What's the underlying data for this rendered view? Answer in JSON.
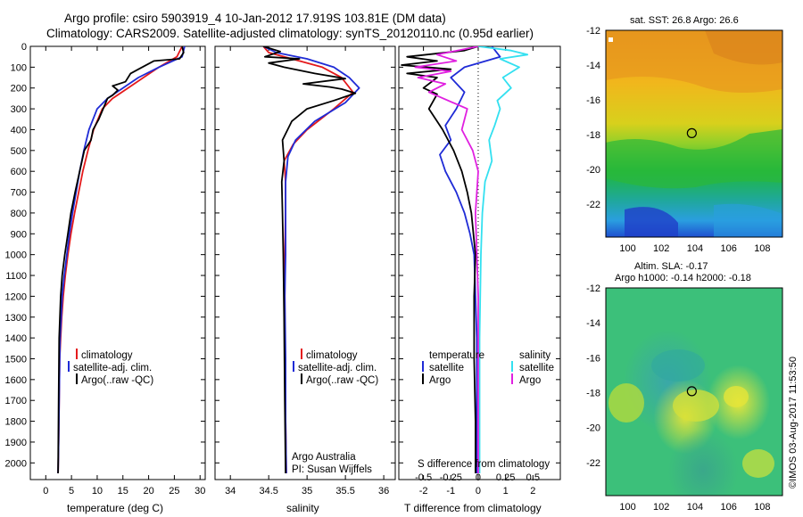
{
  "title": {
    "line1": "Argo profile: csiro 5903919_4 10-Jan-2012 17.919S 103.81E (DM data)",
    "line2": "Climatology: CARS2009. Satellite-adjusted climatology: synTS_20120110.nc (0.95d earlier)"
  },
  "colors": {
    "climatology": "#e41a1c",
    "satellite": "#1f2bd6",
    "argo": "#000000",
    "sal_satellite": "#33e0f0",
    "sal_argo": "#e020e0"
  },
  "chart_data": [
    {
      "type": "line",
      "xlabel": "temperature (deg C)",
      "ylabel": "",
      "xlim": [
        -3,
        31
      ],
      "ylim": [
        2080,
        0
      ],
      "xticks": [
        0,
        5,
        10,
        15,
        20,
        25,
        30
      ],
      "yticks": [
        0,
        100,
        200,
        300,
        400,
        500,
        600,
        700,
        800,
        900,
        1000,
        1100,
        1200,
        1300,
        1400,
        1500,
        1600,
        1700,
        1800,
        1900,
        2000
      ],
      "legend": [
        "climatology",
        "satellite-adj. clim.",
        "Argo(..raw -QC)"
      ],
      "series": [
        {
          "name": "climatology",
          "color_key": "climatology",
          "x": [
            26.5,
            25.5,
            22,
            19,
            16,
            13,
            11,
            9.3,
            8.2,
            7.2,
            6.4,
            5.6,
            4.9,
            4.3,
            3.8,
            3.4,
            3.1,
            2.9,
            2.7,
            2.6,
            2.5,
            2.4
          ],
          "y": [
            0,
            50,
            100,
            150,
            200,
            250,
            300,
            400,
            500,
            600,
            700,
            800,
            900,
            1000,
            1100,
            1200,
            1300,
            1400,
            1500,
            1700,
            1900,
            2050
          ]
        },
        {
          "name": "satellite-adj. clim.",
          "color_key": "satellite",
          "x": [
            27,
            26.5,
            22,
            18,
            15,
            12,
            10,
            8.4,
            7.4,
            6.6,
            5.9,
            5.2,
            4.6,
            4.1,
            3.6,
            3.2,
            3.0,
            2.8,
            2.7,
            2.6,
            2.5,
            2.4
          ],
          "y": [
            0,
            50,
            100,
            150,
            200,
            250,
            300,
            400,
            500,
            600,
            700,
            800,
            900,
            1000,
            1100,
            1200,
            1300,
            1400,
            1500,
            1700,
            1900,
            2050
          ]
        },
        {
          "name": "Argo(..raw -QC)",
          "color_key": "argo",
          "x": [
            26.5,
            26.8,
            26,
            21,
            18,
            16.5,
            15.5,
            13,
            14,
            13,
            12,
            10.3,
            9.2,
            8.8,
            7.5,
            6.6,
            5.7,
            4.9,
            4.3,
            3.7,
            3.2,
            2.9,
            2.6,
            2.5,
            2.4
          ],
          "y": [
            0,
            30,
            60,
            70,
            110,
            130,
            170,
            190,
            210,
            235,
            250,
            350,
            400,
            450,
            500,
            600,
            700,
            800,
            900,
            1000,
            1100,
            1200,
            1400,
            1700,
            2050
          ]
        }
      ],
      "annotations": []
    },
    {
      "type": "line",
      "xlabel": "salinity",
      "ylabel": "",
      "xlim": [
        33.8,
        36.15
      ],
      "ylim": [
        2080,
        0
      ],
      "xticks": [
        34,
        34.5,
        35,
        35.5,
        36
      ],
      "legend": [
        "climatology",
        "satellite-adj. clim.",
        "Argo(..raw -QC)"
      ],
      "series": [
        {
          "name": "climatology",
          "color_key": "climatology",
          "x": [
            34.43,
            34.5,
            34.8,
            35.2,
            35.45,
            35.6,
            35.35,
            35.0,
            34.82,
            34.7,
            34.72,
            34.72,
            34.71,
            34.71,
            34.71,
            34.72,
            34.72,
            34.73
          ],
          "y": [
            0,
            30,
            60,
            100,
            150,
            220,
            300,
            400,
            470,
            550,
            650,
            800,
            1000,
            1200,
            1400,
            1600,
            1800,
            2050
          ]
        },
        {
          "name": "satellite-adj. clim.",
          "color_key": "satellite",
          "x": [
            34.43,
            34.6,
            35.0,
            35.35,
            35.55,
            35.68,
            35.5,
            35.1,
            34.85,
            34.75,
            34.72,
            34.72,
            34.72,
            34.71,
            34.72,
            34.72,
            34.73
          ],
          "y": [
            0,
            30,
            60,
            100,
            150,
            200,
            270,
            360,
            450,
            530,
            650,
            800,
            1000,
            1200,
            1500,
            1800,
            2050
          ]
        },
        {
          "name": "Argo(..raw -QC)",
          "color_key": "argo",
          "x": [
            34.43,
            34.65,
            34.45,
            34.9,
            34.5,
            34.7,
            35.1,
            35.5,
            34.95,
            35.3,
            35.45,
            35.63,
            35.35,
            35.0,
            34.8,
            34.68,
            34.7,
            34.67,
            34.68,
            34.69,
            34.7,
            34.71,
            34.72
          ],
          "y": [
            0,
            25,
            50,
            60,
            80,
            100,
            130,
            155,
            180,
            195,
            205,
            225,
            260,
            300,
            360,
            450,
            550,
            650,
            800,
            1000,
            1300,
            1700,
            2050
          ]
        }
      ],
      "annotations": [
        "Argo Australia",
        "PI: Susan Wijffels"
      ]
    },
    {
      "type": "line",
      "xlabel": "T difference from climatology",
      "top_label": "S difference from climatology",
      "xlim": [
        -2.9,
        3.0
      ],
      "ylim": [
        2080,
        0
      ],
      "xticks": [
        -2,
        -1,
        0,
        1,
        2
      ],
      "top_ticks": [
        "-0.5",
        "-0.25",
        "0",
        "0.25",
        "0.5"
      ],
      "top_tick_positions": [
        -2,
        -1,
        0,
        1,
        2
      ],
      "legend_groups": [
        {
          "heading": "temperature",
          "items": [
            "satellite",
            "Argo"
          ]
        },
        {
          "heading": "salinity",
          "items": [
            "satellite",
            "Argo"
          ]
        }
      ],
      "series": [
        {
          "name": "temperature satellite",
          "color_key": "satellite",
          "x": [
            0.5,
            0.8,
            -0.5,
            -1.0,
            -0.5,
            -0.8,
            -1.2,
            -1.0,
            -1.4,
            -1.2,
            -0.8,
            -0.5,
            -0.3,
            -0.15,
            -0.1,
            -0.05,
            -0.05,
            -0.05,
            -0.05
          ],
          "y": [
            0,
            50,
            100,
            150,
            220,
            300,
            380,
            450,
            520,
            600,
            700,
            800,
            900,
            1000,
            1200,
            1400,
            1600,
            1800,
            2050
          ]
        },
        {
          "name": "temperature Argo",
          "color_key": "argo",
          "x": [
            0,
            -0.5,
            -2.6,
            -1.5,
            -2.8,
            -1.0,
            -2.6,
            -1.5,
            -1.8,
            -2.0,
            -1.5,
            -1.8,
            -1.3,
            -0.9,
            -0.6,
            -0.4,
            -0.25,
            -0.1,
            -0.15,
            -0.15,
            -0.1,
            -0.1
          ],
          "y": [
            0,
            20,
            50,
            70,
            90,
            110,
            130,
            150,
            180,
            200,
            230,
            300,
            400,
            500,
            600,
            700,
            800,
            1000,
            1200,
            1500,
            1800,
            2050
          ]
        },
        {
          "name": "salinity satellite",
          "color_key": "sal_satellite",
          "x": [
            0,
            1.2,
            1.8,
            0.8,
            1.5,
            0.9,
            1.2,
            0.7,
            0.8,
            0.6,
            0.4,
            0.5,
            0.25,
            0.15,
            0.1,
            0.05,
            0.05,
            0.05
          ],
          "y": [
            0,
            20,
            40,
            60,
            100,
            150,
            200,
            260,
            300,
            380,
            450,
            550,
            650,
            800,
            1000,
            1400,
            1800,
            2050
          ]
        },
        {
          "name": "salinity Argo",
          "color_key": "sal_argo",
          "x": [
            0,
            -1.5,
            -0.8,
            -2.3,
            -1.0,
            -2.2,
            -1.2,
            -1.8,
            -0.4,
            -0.6,
            -0.2,
            0.0,
            -0.1,
            0.0,
            0.0
          ],
          "y": [
            0,
            40,
            70,
            100,
            120,
            150,
            180,
            220,
            300,
            400,
            500,
            600,
            800,
            1200,
            2050
          ]
        }
      ]
    },
    {
      "type": "heatmap",
      "title": "sat. SST: 26.8 Argo: 26.6",
      "xlim": [
        98.7,
        109.2
      ],
      "ylim": [
        -23.9,
        -12
      ],
      "xticks": [
        100,
        102,
        104,
        106,
        108
      ],
      "yticks": [
        -12,
        -14,
        -16,
        -18,
        -20,
        -22
      ],
      "marker": {
        "x": 103.81,
        "y": -17.919
      }
    },
    {
      "type": "heatmap",
      "title_line1": "Altim. SLA: -0.17",
      "title_line2": "Argo h1000: -0.14 h2000: -0.18",
      "xlim": [
        98.7,
        109.2
      ],
      "ylim": [
        -23.9,
        -12
      ],
      "xticks": [
        100,
        102,
        104,
        106,
        108
      ],
      "yticks": [
        -12,
        -14,
        -16,
        -18,
        -20,
        -22
      ],
      "marker": {
        "x": 103.81,
        "y": -17.919
      }
    }
  ],
  "side_label": "©IMOS 03-Aug-2017 11:53:50"
}
